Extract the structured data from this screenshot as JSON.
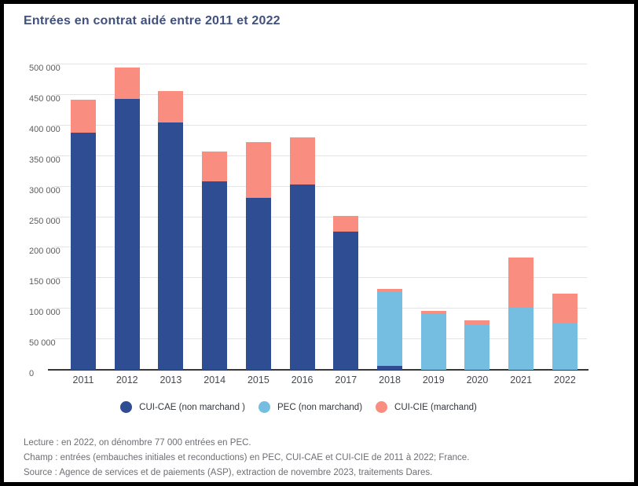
{
  "chart_data": {
    "type": "bar",
    "stacked": true,
    "title": "Entrées en contrat aidé entre 2011 et 2022",
    "categories": [
      "2011",
      "2012",
      "2013",
      "2014",
      "2015",
      "2016",
      "2017",
      "2018",
      "2019",
      "2020",
      "2021",
      "2022"
    ],
    "series": [
      {
        "name": "CUI-CAE (non marchand )",
        "color": "#2e4d92",
        "values": [
          388000,
          443000,
          405000,
          309000,
          281000,
          303000,
          226000,
          7000,
          0,
          0,
          0,
          0
        ]
      },
      {
        "name": "PEC (non marchand)",
        "color": "#76bde2",
        "values": [
          0,
          0,
          0,
          0,
          0,
          0,
          0,
          120000,
          91000,
          74000,
          102000,
          77000
        ]
      },
      {
        "name": "CUI-CIE (marchand)",
        "color": "#f98e80",
        "values": [
          54000,
          52000,
          51000,
          49000,
          92000,
          78000,
          26000,
          5000,
          5000,
          7000,
          82000,
          48000
        ]
      }
    ],
    "totals": [
      442000,
      495000,
      456000,
      358000,
      373000,
      381000,
      252000,
      132000,
      96000,
      81000,
      184000,
      125000
    ],
    "xlabel": "",
    "ylabel": "",
    "ylim": [
      0,
      500000
    ],
    "ytick_step": 50000,
    "ytick_labels": [
      "0",
      "50 000",
      "100 000",
      "150 000",
      "200 000",
      "250 000",
      "300 000",
      "350 000",
      "400 000",
      "450 000",
      "500 000"
    ],
    "grid": true,
    "legend_position": "bottom"
  },
  "footer": {
    "lecture": "Lecture : en 2022, on dénombre 77 000 entrées en PEC.",
    "champ": "Champ : entrées (embauches initiales et reconductions) en PEC, CUI-CAE et CUI-CIE de 2011 à 2022; France.",
    "source": "Source : Agence de services et de paiements (ASP), extraction de novembre 2023, traitements Dares."
  },
  "colors": {
    "title": "#41517e",
    "axis": "#35373b",
    "gridline": "#e4e4e6",
    "tick_text": "#5d5d61",
    "note_text": "#6e6e74"
  }
}
